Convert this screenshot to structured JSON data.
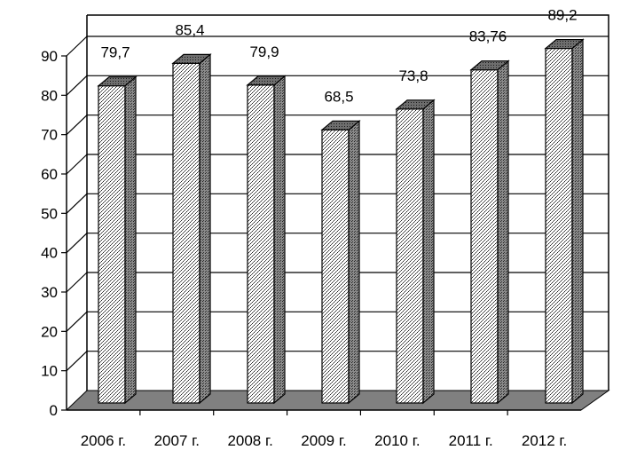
{
  "chart_data": {
    "type": "bar",
    "categories": [
      "2006 г.",
      "2007 г.",
      "2008 г.",
      "2009 г.",
      "2010 г.",
      "2011 г.",
      "2012 г."
    ],
    "values": [
      79.7,
      85.4,
      79.9,
      68.5,
      73.8,
      83.76,
      89.2
    ],
    "value_labels": [
      "79,7",
      "85,4",
      "79,9",
      "68,5",
      "73,8",
      "83,76",
      "89,2"
    ],
    "y_ticks": [
      0,
      10,
      20,
      30,
      40,
      50,
      60,
      70,
      80,
      90
    ],
    "ylim": [
      0,
      90
    ],
    "grid": true,
    "legend": "none",
    "title": "",
    "xlabel": "",
    "ylabel": "",
    "bar_pattern": "stipple",
    "floor_color": "#808080"
  }
}
